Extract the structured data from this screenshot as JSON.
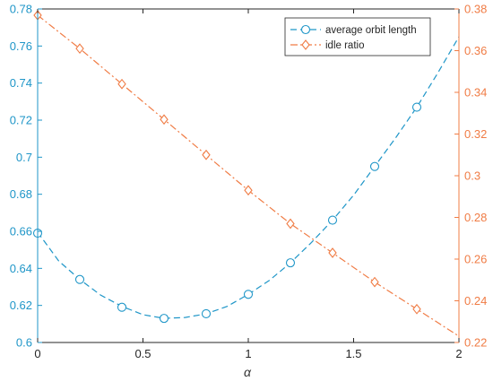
{
  "chart_data": {
    "type": "line",
    "title": "",
    "xlabel": "α",
    "ylabel_left": "",
    "ylabel_right": "",
    "xlim": [
      0,
      2
    ],
    "ylim_left": [
      0.6,
      0.78
    ],
    "ylim_right": [
      0.22,
      0.38
    ],
    "x_ticks": [
      "0",
      "0.5",
      "1",
      "1.5",
      "2"
    ],
    "y_left_ticks": [
      "0.6",
      "0.62",
      "0.64",
      "0.66",
      "0.68",
      "0.7",
      "0.72",
      "0.74",
      "0.76",
      "0.78"
    ],
    "y_right_ticks": [
      "0.22",
      "0.24",
      "0.26",
      "0.28",
      "0.3",
      "0.32",
      "0.34",
      "0.36",
      "0.38"
    ],
    "grid": false,
    "legend_position": "top-right",
    "series": [
      {
        "name": "average orbit length",
        "axis": "left",
        "color": "#1f96c8",
        "line_style": "dashed",
        "marker": "circle",
        "markers_x": [
          0,
          0.2,
          0.4,
          0.6,
          0.8,
          1.0,
          1.2,
          1.4,
          1.6,
          1.8
        ],
        "markers_y": [
          0.659,
          0.634,
          0.619,
          0.613,
          0.6155,
          0.626,
          0.643,
          0.666,
          0.695,
          0.727
        ],
        "line_x": [
          0,
          0.1,
          0.2,
          0.3,
          0.4,
          0.5,
          0.6,
          0.7,
          0.8,
          0.9,
          1.0,
          1.1,
          1.2,
          1.3,
          1.4,
          1.5,
          1.6,
          1.7,
          1.8,
          1.9,
          2.0
        ],
        "line_y": [
          0.6595,
          0.644,
          0.634,
          0.6255,
          0.6195,
          0.615,
          0.613,
          0.6135,
          0.6155,
          0.6195,
          0.626,
          0.6335,
          0.643,
          0.654,
          0.666,
          0.6795,
          0.695,
          0.7105,
          0.727,
          0.7455,
          0.765
        ]
      },
      {
        "name": "idle ratio",
        "axis": "right",
        "color": "#f07c45",
        "line_style": "dash-dot",
        "marker": "diamond",
        "markers_x": [
          0,
          0.2,
          0.4,
          0.6,
          0.8,
          1.0,
          1.2,
          1.4,
          1.6,
          1.8
        ],
        "markers_y": [
          0.377,
          0.361,
          0.344,
          0.327,
          0.31,
          0.293,
          0.277,
          0.263,
          0.249,
          0.236
        ],
        "line_x": [
          0,
          0.2,
          0.4,
          0.6,
          0.8,
          1.0,
          1.2,
          1.4,
          1.6,
          1.8,
          2.0
        ],
        "line_y": [
          0.377,
          0.361,
          0.344,
          0.327,
          0.31,
          0.293,
          0.277,
          0.263,
          0.249,
          0.236,
          0.223
        ]
      }
    ]
  }
}
